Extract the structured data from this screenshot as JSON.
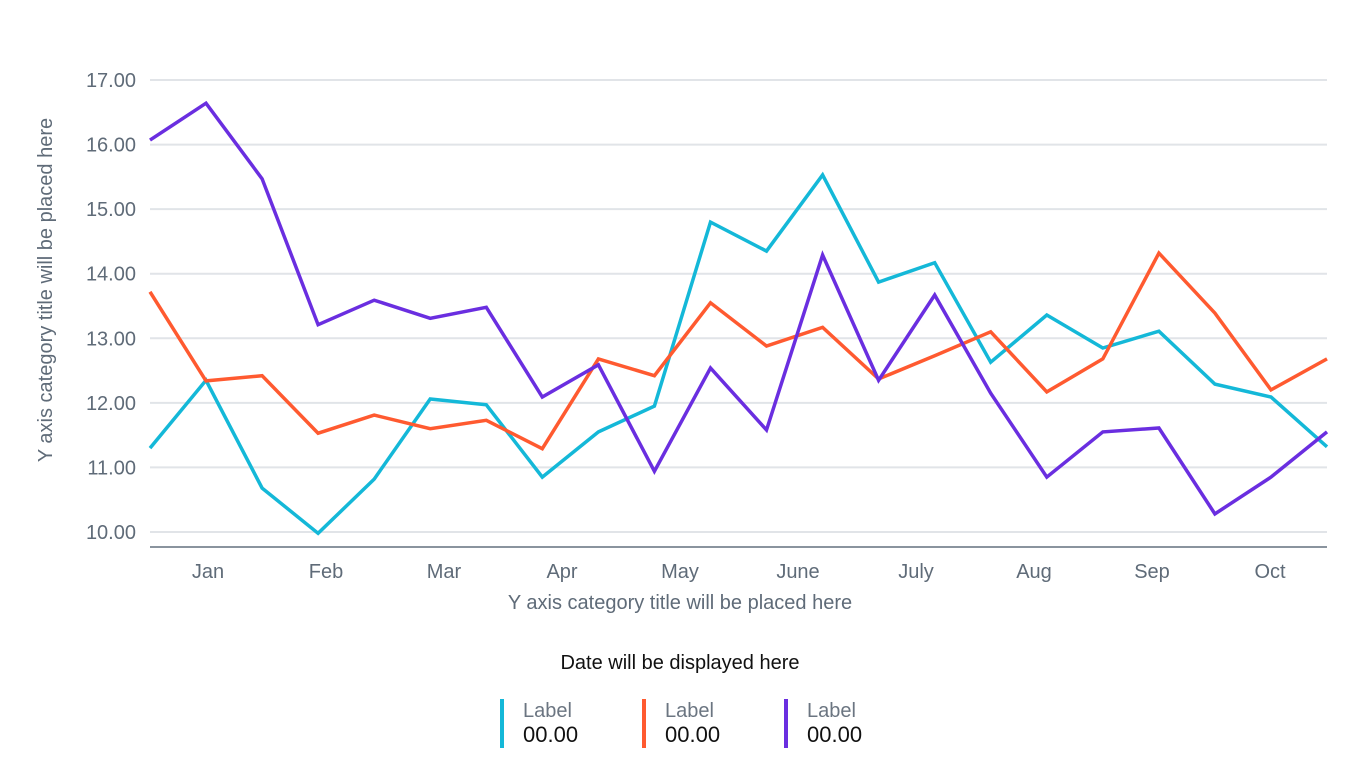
{
  "chart_data": {
    "type": "line",
    "xlabel": "Y axis category title will be placed here",
    "ylabel": "Y axis category title will be placed here",
    "ylim": [
      10,
      17
    ],
    "yticks": [
      "10.00",
      "11.00",
      "12.00",
      "13.00",
      "14.00",
      "15.00",
      "16.00",
      "17.00"
    ],
    "month_labels": [
      "Jan",
      "Feb",
      "Mar",
      "Apr",
      "May",
      "June",
      "July",
      "Aug",
      "Sep",
      "Oct"
    ],
    "grid": true,
    "series": [
      {
        "color": "#14b8d8",
        "values": [
          11.3,
          12.35,
          10.68,
          9.98,
          10.82,
          12.06,
          11.97,
          10.85,
          11.55,
          11.95,
          14.8,
          14.35,
          15.53,
          13.87,
          14.17,
          12.63,
          13.36,
          12.85,
          13.11,
          12.29,
          12.09,
          11.32
        ]
      },
      {
        "color": "#ff5a30",
        "values": [
          13.72,
          12.34,
          12.42,
          11.53,
          11.81,
          11.6,
          11.73,
          11.29,
          12.68,
          12.42,
          13.55,
          12.88,
          13.17,
          12.37,
          12.73,
          13.1,
          12.17,
          12.68,
          14.32,
          13.39,
          12.2,
          12.68
        ]
      },
      {
        "color": "#6a2ee0",
        "values": [
          16.07,
          16.64,
          15.47,
          13.21,
          13.59,
          13.31,
          13.48,
          12.09,
          12.59,
          10.94,
          12.54,
          11.58,
          14.29,
          12.35,
          13.67,
          12.15,
          10.85,
          11.55,
          11.61,
          10.28,
          10.85,
          11.55
        ]
      }
    ]
  },
  "date_text": "Date will be displayed here",
  "legend": [
    {
      "label": "Label",
      "value": "00.00",
      "color": "#14b8d8"
    },
    {
      "label": "Label",
      "value": "00.00",
      "color": "#ff5a30"
    },
    {
      "label": "Label",
      "value": "00.00",
      "color": "#6a2ee0"
    }
  ]
}
